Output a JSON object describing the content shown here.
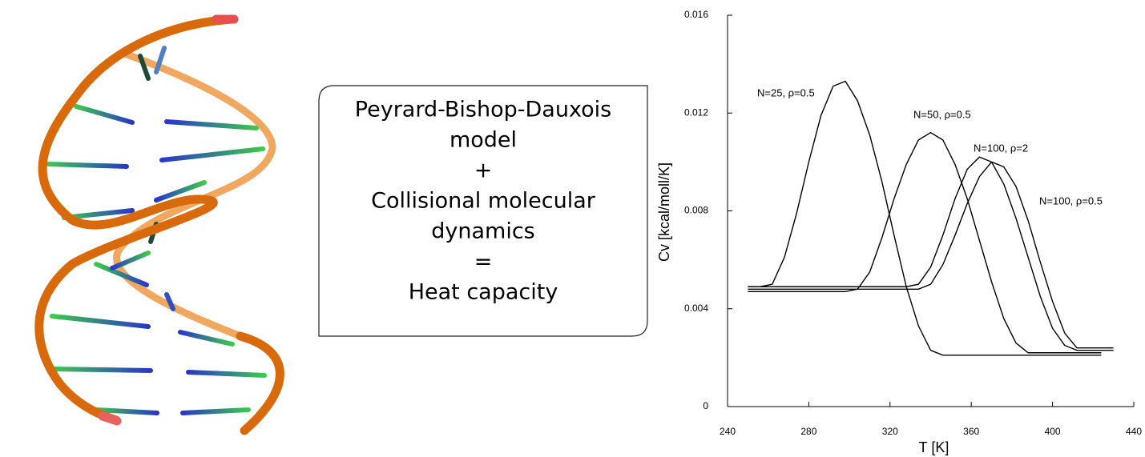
{
  "box": {
    "lines": [
      "Peyrard-Bishop-Dauxois",
      "model",
      "+",
      "Collisional molecular",
      "dynamics",
      "=",
      "Heat capacity"
    ]
  },
  "chart_data": {
    "type": "line",
    "xlabel": "T [K]",
    "ylabel": "Cv [kcal/moll/K]",
    "xlim": [
      240,
      440
    ],
    "xticks": [
      240,
      280,
      320,
      360,
      400,
      440
    ],
    "ylim": [
      0,
      0.016
    ],
    "yticks": [
      0,
      0.004,
      0.008,
      0.012,
      0.016
    ],
    "x": [
      250,
      256,
      262,
      268,
      274,
      280,
      286,
      292,
      298,
      304,
      310,
      316,
      322,
      328,
      334,
      340,
      346,
      352,
      358,
      364,
      370,
      376,
      382,
      388,
      394,
      400,
      406,
      412,
      418,
      424,
      430
    ],
    "series": [
      {
        "name": "N=25, ρ=0.5",
        "color": "#000000",
        "values": [
          0.0049,
          0.0049,
          0.005,
          0.0061,
          0.0079,
          0.01,
          0.0119,
          0.0131,
          0.0133,
          0.0125,
          0.0111,
          0.0092,
          0.007,
          0.0049,
          0.0033,
          0.0023,
          0.0021,
          0.0021,
          0.0021,
          0.0021,
          0.0021,
          0.0021,
          0.0021,
          0.0021,
          0.0021,
          0.0021,
          0.0021,
          0.0021,
          0.0021,
          0.0021,
          null
        ]
      },
      {
        "name": "N=50, ρ=0.5",
        "color": "#000000",
        "values": [
          0.0047,
          0.0047,
          0.0047,
          0.0047,
          0.0047,
          0.0047,
          0.0047,
          0.0047,
          0.0047,
          0.0048,
          0.0055,
          0.0069,
          0.0085,
          0.0099,
          0.0109,
          0.0112,
          0.0109,
          0.0099,
          0.0085,
          0.0068,
          0.0051,
          0.0036,
          0.0026,
          0.0022,
          0.0022,
          0.0022,
          0.0022,
          0.0022,
          0.0022,
          0.0022,
          null
        ]
      },
      {
        "name": "N=100, ρ=2",
        "color": "#000000",
        "values": [
          0.0049,
          0.0049,
          0.0049,
          0.0049,
          0.0049,
          0.0049,
          0.0049,
          0.0049,
          0.0049,
          0.0049,
          0.0049,
          0.0049,
          0.0049,
          0.0049,
          0.005,
          0.0057,
          0.007,
          0.0085,
          0.0097,
          0.0102,
          0.01,
          0.0091,
          0.0077,
          0.0061,
          0.0045,
          0.0032,
          0.0025,
          0.0023,
          0.0023,
          0.0023,
          0.0023
        ]
      },
      {
        "name": "N=100, ρ=0.5",
        "color": "#000000",
        "values": [
          0.0048,
          0.0048,
          0.0048,
          0.0048,
          0.0048,
          0.0048,
          0.0048,
          0.0048,
          0.0048,
          0.0048,
          0.0048,
          0.0048,
          0.0048,
          0.0048,
          0.0048,
          0.005,
          0.0058,
          0.007,
          0.0083,
          0.0094,
          0.01,
          0.0098,
          0.009,
          0.0076,
          0.0059,
          0.0043,
          0.003,
          0.0024,
          0.0024,
          0.0024,
          0.0024
        ]
      }
    ]
  }
}
